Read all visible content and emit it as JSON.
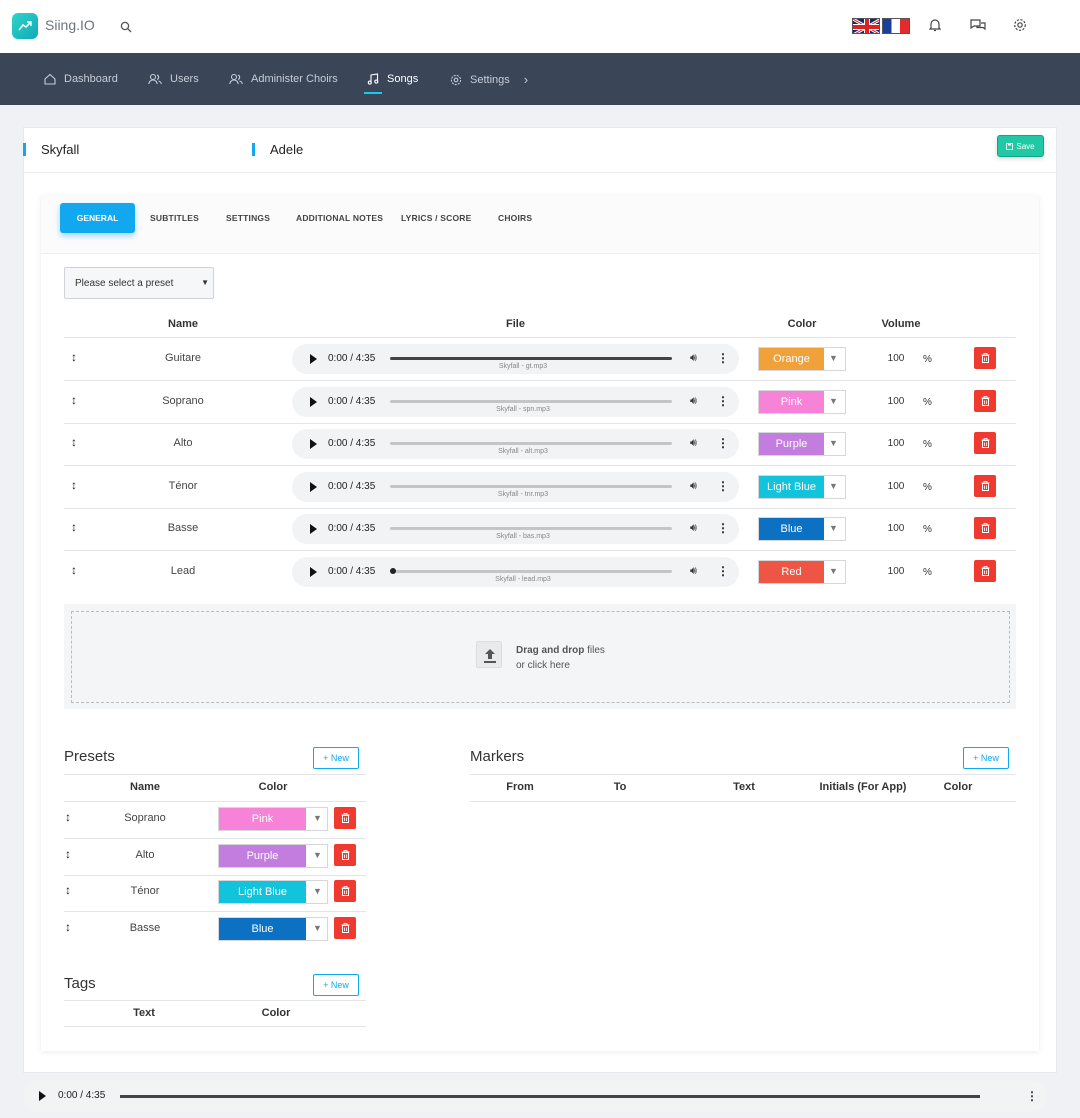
{
  "app": {
    "name": "Siing.IO"
  },
  "nav": {
    "items": [
      {
        "label": "Dashboard"
      },
      {
        "label": "Users"
      },
      {
        "label": "Administer Choirs"
      },
      {
        "label": "Songs"
      },
      {
        "label": "Settings"
      }
    ],
    "active": "Songs"
  },
  "song": {
    "title": "Skyfall",
    "artist": "Adele",
    "save_label": "Save"
  },
  "tabs": [
    "GENERAL",
    "SUBTITLES",
    "SETTINGS",
    "ADDITIONAL NOTES",
    "LYRICS / SCORE",
    "CHOIRS"
  ],
  "preset_select": {
    "value": "Please select a preset"
  },
  "tracks_table": {
    "headers": {
      "name": "Name",
      "file": "File",
      "color": "Color",
      "volume": "Volume"
    },
    "rows": [
      {
        "name": "Guitare",
        "time": "0:00 / 4:35",
        "file": "Skyfall - gt.mp3",
        "color": "Orange",
        "color_hex": "#f0a13a",
        "volume": "100",
        "unit": "%"
      },
      {
        "name": "Soprano",
        "time": "0:00 / 4:35",
        "file": "Skyfall - spn.mp3",
        "color": "Pink",
        "color_hex": "#f783d8",
        "volume": "100",
        "unit": "%"
      },
      {
        "name": "Alto",
        "time": "0:00 / 4:35",
        "file": "Skyfall - alt.mp3",
        "color": "Purple",
        "color_hex": "#c27ddf",
        "volume": "100",
        "unit": "%"
      },
      {
        "name": "Ténor",
        "time": "0:00 / 4:35",
        "file": "Skyfall - tnr.mp3",
        "color": "Light Blue",
        "color_hex": "#12c3dc",
        "volume": "100",
        "unit": "%"
      },
      {
        "name": "Basse",
        "time": "0:00 / 4:35",
        "file": "Skyfall - bas.mp3",
        "color": "Blue",
        "color_hex": "#0c71c2",
        "volume": "100",
        "unit": "%"
      },
      {
        "name": "Lead",
        "time": "0:00 / 4:35",
        "file": "Skyfall - lead.mp3",
        "color": "Red",
        "color_hex": "#ee5544",
        "volume": "100",
        "unit": "%"
      }
    ]
  },
  "dropzone": {
    "bold": "Drag and drop",
    "rest": " files",
    "line2": "or click here"
  },
  "presets": {
    "title": "Presets",
    "new_label": "+ New",
    "headers": {
      "name": "Name",
      "color": "Color"
    },
    "rows": [
      {
        "name": "Soprano",
        "color": "Pink",
        "color_hex": "#f783d8"
      },
      {
        "name": "Alto",
        "color": "Purple",
        "color_hex": "#c27ddf"
      },
      {
        "name": "Ténor",
        "color": "Light Blue",
        "color_hex": "#12c3dc"
      },
      {
        "name": "Basse",
        "color": "Blue",
        "color_hex": "#0c71c2"
      }
    ]
  },
  "markers": {
    "title": "Markers",
    "new_label": "+ New",
    "headers": [
      "From",
      "To",
      "Text",
      "Initials (For App)",
      "Color"
    ]
  },
  "tags": {
    "title": "Tags",
    "new_label": "+ New",
    "headers": {
      "text": "Text",
      "color": "Color"
    }
  },
  "bottom_player": {
    "time": "0:00 / 4:35"
  },
  "colors": {
    "accent": "#11a8ef",
    "nav_bg": "#3a4558",
    "save": "#20c9a4",
    "delete": "#f03a2f"
  }
}
